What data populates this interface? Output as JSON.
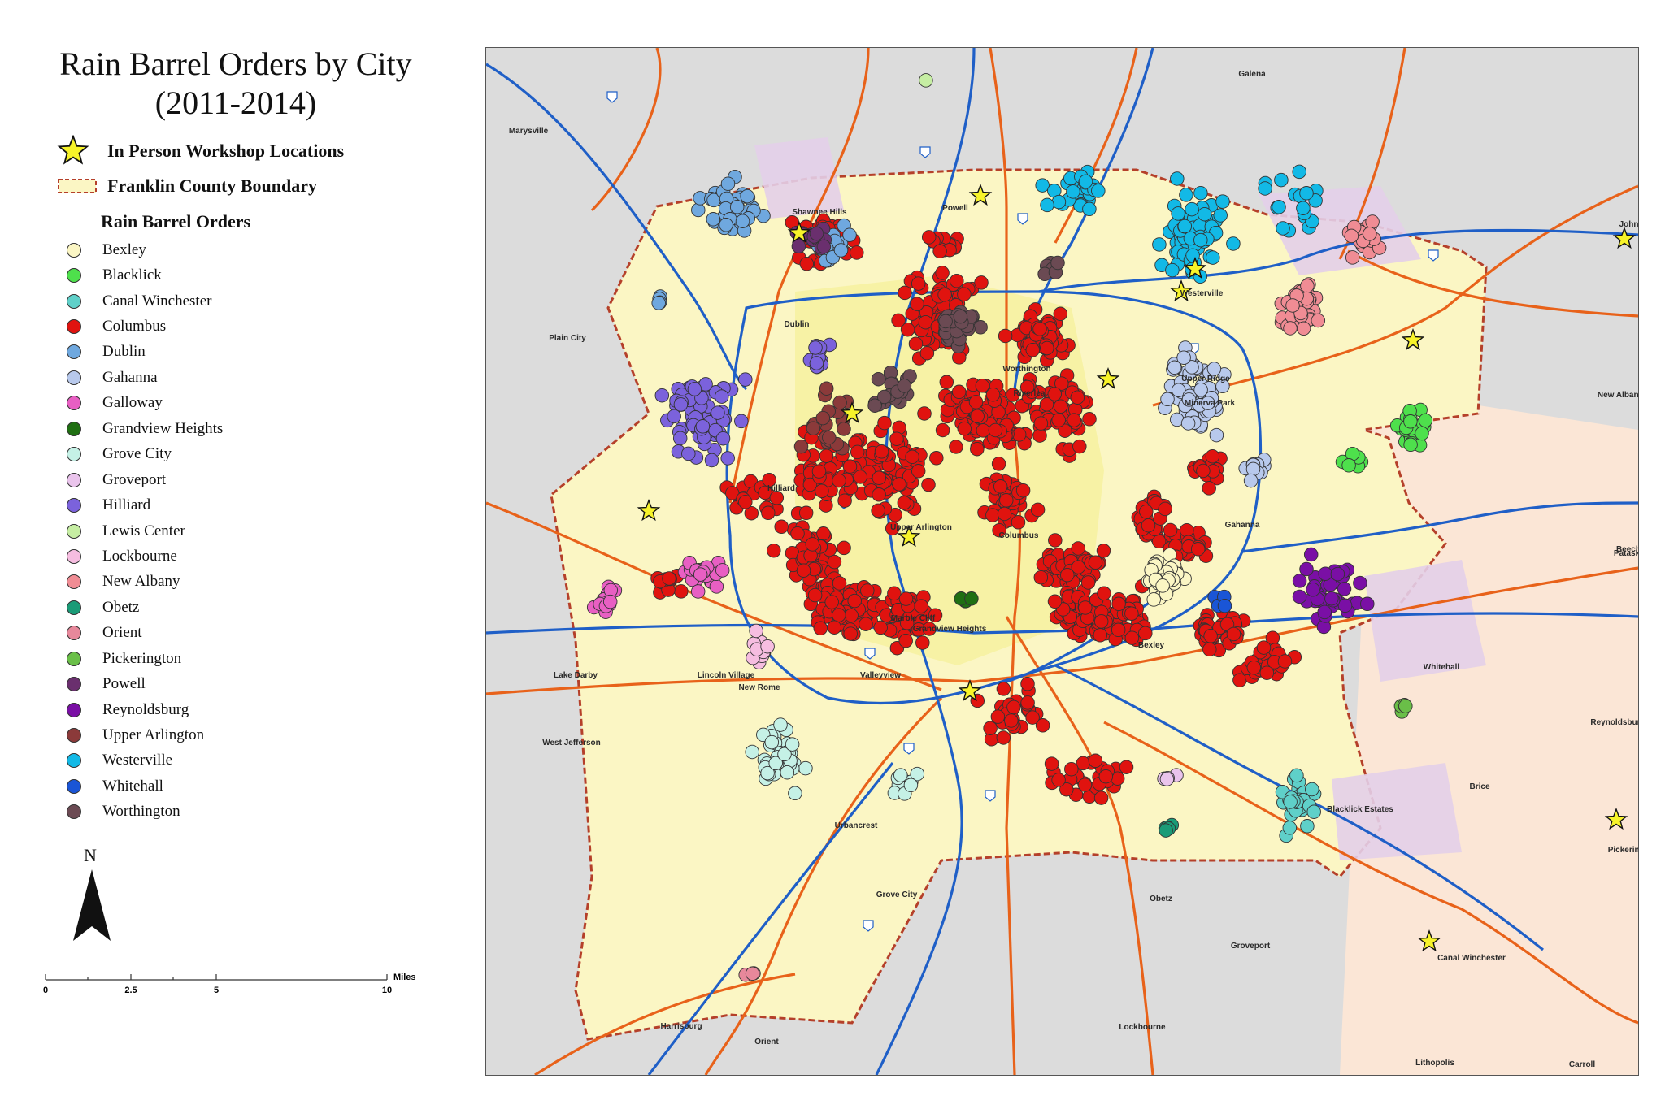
{
  "legend": {
    "title_line1": "Rain Barrel Orders by City",
    "title_line2": "(2011-2014)",
    "workshop_label": "In Person Workshop Locations",
    "boundary_label": "Franklin County Boundary",
    "orders_heading": "Rain Barrel Orders",
    "cities": [
      {
        "name": "Bexley",
        "color": "#fbf6c4"
      },
      {
        "name": "Blacklick",
        "color": "#4ee04c"
      },
      {
        "name": "Canal Winchester",
        "color": "#5fd0c9"
      },
      {
        "name": "Columbus",
        "color": "#e0130f"
      },
      {
        "name": "Dublin",
        "color": "#6fa8df"
      },
      {
        "name": "Gahanna",
        "color": "#b8c9ec"
      },
      {
        "name": "Galloway",
        "color": "#e85fc3"
      },
      {
        "name": "Grandview Heights",
        "color": "#1f6f12"
      },
      {
        "name": "Grove City",
        "color": "#c5f1e6"
      },
      {
        "name": "Groveport",
        "color": "#eac4ec"
      },
      {
        "name": "Hilliard",
        "color": "#7b62dc"
      },
      {
        "name": "Lewis Center",
        "color": "#c6eea3"
      },
      {
        "name": "Lockbourne",
        "color": "#f6bde0"
      },
      {
        "name": "New Albany",
        "color": "#f08c94"
      },
      {
        "name": "Obetz",
        "color": "#1a9b77"
      },
      {
        "name": "Orient",
        "color": "#e7889b"
      },
      {
        "name": "Pickerington",
        "color": "#6abf48"
      },
      {
        "name": "Powell",
        "color": "#6a2f6e"
      },
      {
        "name": "Reynoldsburg",
        "color": "#7a0fa5"
      },
      {
        "name": "Upper Arlington",
        "color": "#8b3a3a"
      },
      {
        "name": "Westerville",
        "color": "#12b9e6"
      },
      {
        "name": "Whitehall",
        "color": "#1a55d6"
      },
      {
        "name": "Worthington",
        "color": "#6b4a53"
      }
    ]
  },
  "north_label": "N",
  "scale": {
    "ticks": [
      "0",
      "2.5",
      "5",
      "10"
    ],
    "units": "Miles"
  },
  "map": {
    "place_labels": [
      "Marysville",
      "Galena",
      "Shawnee Hills",
      "Powell",
      "Johnstown",
      "Westerville",
      "Dublin",
      "Plain City",
      "Worthington",
      "Upper Ridge",
      "New Albany",
      "Riverlea",
      "Minerva Park",
      "Hilliard",
      "Gahanna",
      "Upper Arlington",
      "Columbus",
      "Pataskala",
      "Beechwood",
      "Marble Cliff",
      "Grandview Heights",
      "Bexley",
      "Whitehall",
      "Lake Darby",
      "Valleyview",
      "Lincoln Village",
      "New Rome",
      "West Jefferson",
      "Reynoldsburg",
      "Brice",
      "Blacklick Estates",
      "Urbancrest",
      "Pickerington",
      "Grove City",
      "Obetz",
      "Canal Winchester",
      "Groveport",
      "Lockbourne",
      "Harrisburg",
      "Orient",
      "Lithopolis",
      "Carroll"
    ]
  }
}
